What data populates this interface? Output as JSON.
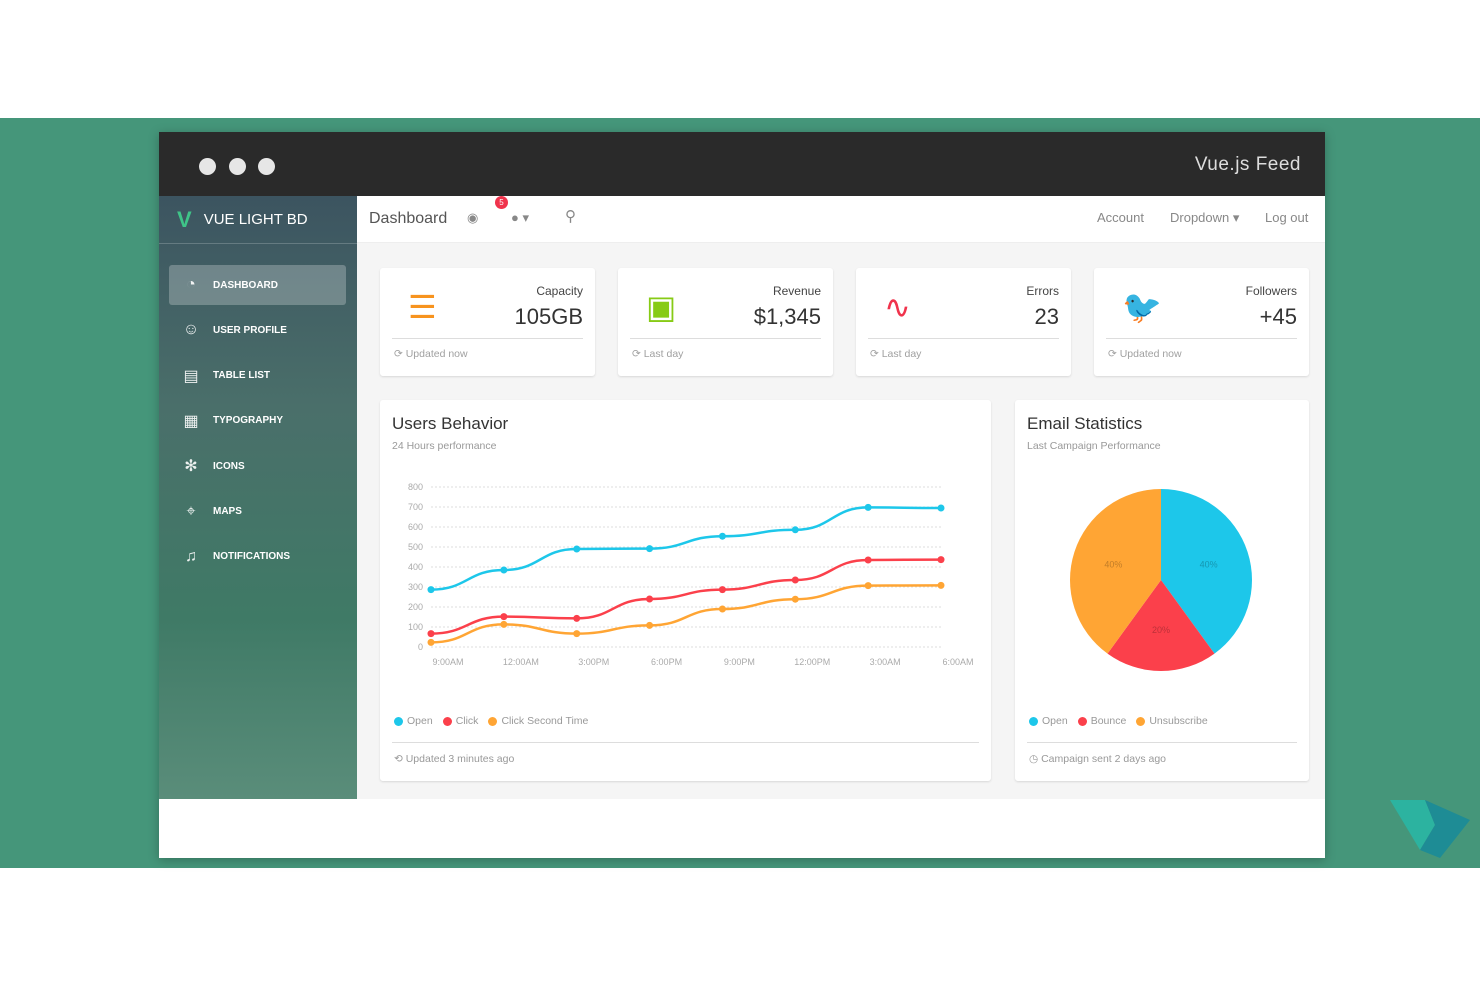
{
  "window": {
    "title": "Vue.js Feed"
  },
  "sidebar": {
    "brand": "VUE LIGHT BD",
    "items": [
      {
        "label": "DASHBOARD",
        "icon": "pie-chart-icon",
        "active": true
      },
      {
        "label": "USER PROFILE",
        "icon": "user-icon"
      },
      {
        "label": "TABLE LIST",
        "icon": "clipboard-icon"
      },
      {
        "label": "TYPOGRAPHY",
        "icon": "document-icon"
      },
      {
        "label": "ICONS",
        "icon": "atom-icon"
      },
      {
        "label": "MAPS",
        "icon": "map-pin-icon"
      },
      {
        "label": "NOTIFICATIONS",
        "icon": "bell-icon"
      }
    ]
  },
  "topnav": {
    "title": "Dashboard",
    "badge": "5",
    "account": "Account",
    "dropdown": "Dropdown",
    "logout": "Log out"
  },
  "stats": [
    {
      "label": "Capacity",
      "value": "105GB",
      "footer": "Updated now",
      "icon": "database-icon",
      "color": "#f7931e"
    },
    {
      "label": "Revenue",
      "value": "$1,345",
      "footer": "Last day",
      "icon": "wallet-icon",
      "color": "#87cb16"
    },
    {
      "label": "Errors",
      "value": "23",
      "footer": "Last day",
      "icon": "graph-icon",
      "color": "#f0334c"
    },
    {
      "label": "Followers",
      "value": "+45",
      "footer": "Updated now",
      "icon": "twitter-icon",
      "color": "#2fb9e8"
    }
  ],
  "users": {
    "title": "Users Behavior",
    "subtitle": "24 Hours performance",
    "footer": "Updated 3 minutes ago"
  },
  "email": {
    "title": "Email Statistics",
    "subtitle": "Last Campaign Performance",
    "footer": "Campaign sent 2 days ago"
  },
  "chart_data": [
    {
      "type": "line",
      "categories": [
        "9:00AM",
        "12:00AM",
        "3:00PM",
        "6:00PM",
        "9:00PM",
        "12:00PM",
        "3:00AM",
        "6:00AM"
      ],
      "yticks": [
        "0",
        "100",
        "200",
        "300",
        "400",
        "500",
        "600",
        "700",
        "800"
      ],
      "ylim": [
        0,
        800
      ],
      "grid": true,
      "legend": "bottom-left",
      "series": [
        {
          "name": "Open",
          "color": "#1dc7ea",
          "values": [
            287,
            385,
            490,
            492,
            554,
            586,
            698,
            695
          ]
        },
        {
          "name": "Click",
          "color": "#fb404b",
          "values": [
            67,
            152,
            143,
            240,
            287,
            335,
            435,
            437
          ]
        },
        {
          "name": "Click Second Time",
          "color": "#ffa534",
          "values": [
            23,
            113,
            67,
            108,
            190,
            239,
            307,
            308
          ]
        }
      ]
    },
    {
      "type": "pie",
      "legend": "bottom-left",
      "slices": [
        {
          "name": "Open",
          "value": 40,
          "label": "40%",
          "color": "#1dc7ea"
        },
        {
          "name": "Bounce",
          "value": 20,
          "label": "20%",
          "color": "#fb404b"
        },
        {
          "name": "Unsubscribe",
          "value": 40,
          "label": "40%",
          "color": "#ffa534"
        }
      ]
    }
  ]
}
